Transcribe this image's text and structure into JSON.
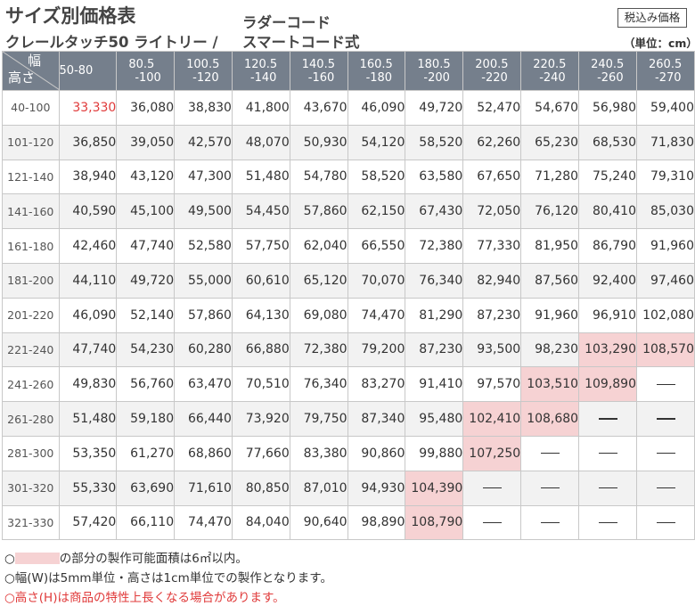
{
  "header": {
    "title": "サイズ別価格表",
    "product1": "クレールタッチ50 ライトリー /",
    "product2_line1": "ラダーコード",
    "product2_line2": "スマートコード式",
    "tax_badge": "税込み価格",
    "unit": "（単位：cm）"
  },
  "table": {
    "corner_width_label": "幅",
    "corner_height_label": "高さ",
    "width_columns": [
      {
        "l1": "50-80",
        "l2": ""
      },
      {
        "l1": "80.5",
        "l2": "-100"
      },
      {
        "l1": "100.5",
        "l2": "-120"
      },
      {
        "l1": "120.5",
        "l2": "-140"
      },
      {
        "l1": "140.5",
        "l2": "-160"
      },
      {
        "l1": "160.5",
        "l2": "-180"
      },
      {
        "l1": "180.5",
        "l2": "-200"
      },
      {
        "l1": "200.5",
        "l2": "-220"
      },
      {
        "l1": "220.5",
        "l2": "-240"
      },
      {
        "l1": "240.5",
        "l2": "-260"
      },
      {
        "l1": "260.5",
        "l2": "-270"
      }
    ],
    "rows": [
      {
        "height": "40-100",
        "prices": [
          "33,330",
          "36,080",
          "38,830",
          "41,800",
          "43,670",
          "46,090",
          "49,720",
          "52,470",
          "54,670",
          "56,980",
          "59,400"
        ]
      },
      {
        "height": "101-120",
        "prices": [
          "36,850",
          "39,050",
          "42,570",
          "48,070",
          "50,930",
          "54,120",
          "58,520",
          "62,260",
          "65,230",
          "68,530",
          "71,830"
        ]
      },
      {
        "height": "121-140",
        "prices": [
          "38,940",
          "43,120",
          "47,300",
          "51,480",
          "54,780",
          "58,520",
          "63,580",
          "67,650",
          "71,280",
          "75,240",
          "79,310"
        ]
      },
      {
        "height": "141-160",
        "prices": [
          "40,590",
          "45,100",
          "49,500",
          "54,450",
          "57,860",
          "62,150",
          "67,430",
          "72,050",
          "76,120",
          "80,410",
          "85,030"
        ]
      },
      {
        "height": "161-180",
        "prices": [
          "42,460",
          "47,740",
          "52,580",
          "57,750",
          "62,040",
          "66,550",
          "72,380",
          "77,330",
          "81,950",
          "86,790",
          "91,960"
        ]
      },
      {
        "height": "181-200",
        "prices": [
          "44,110",
          "49,720",
          "55,000",
          "60,610",
          "65,120",
          "70,070",
          "76,340",
          "82,940",
          "87,560",
          "92,400",
          "97,460"
        ]
      },
      {
        "height": "201-220",
        "prices": [
          "46,090",
          "52,140",
          "57,860",
          "64,130",
          "69,080",
          "74,470",
          "81,290",
          "87,230",
          "91,960",
          "96,910",
          "102,080"
        ]
      },
      {
        "height": "221-240",
        "prices": [
          "47,740",
          "54,230",
          "60,280",
          "66,880",
          "72,380",
          "79,200",
          "87,230",
          "93,500",
          "98,230",
          "103,290",
          "108,570"
        ]
      },
      {
        "height": "241-260",
        "prices": [
          "49,830",
          "56,760",
          "63,470",
          "70,510",
          "76,340",
          "83,270",
          "91,410",
          "97,570",
          "103,510",
          "109,890",
          "—"
        ]
      },
      {
        "height": "261-280",
        "prices": [
          "51,480",
          "59,180",
          "66,440",
          "73,920",
          "79,750",
          "87,340",
          "95,480",
          "102,410",
          "108,680",
          "—",
          "—"
        ]
      },
      {
        "height": "281-300",
        "prices": [
          "53,350",
          "61,270",
          "68,860",
          "77,660",
          "83,380",
          "90,860",
          "99,880",
          "107,250",
          "—",
          "—",
          "—"
        ]
      },
      {
        "height": "301-320",
        "prices": [
          "55,330",
          "63,690",
          "71,610",
          "80,850",
          "87,010",
          "94,930",
          "104,390",
          "—",
          "—",
          "—",
          "—"
        ]
      },
      {
        "height": "321-330",
        "prices": [
          "57,420",
          "66,110",
          "74,470",
          "84,040",
          "90,640",
          "98,890",
          "108,790",
          "—",
          "—",
          "—",
          "—"
        ]
      }
    ],
    "highlighted_cells": [
      [
        7,
        9
      ],
      [
        7,
        10
      ],
      [
        8,
        8
      ],
      [
        8,
        9
      ],
      [
        9,
        7
      ],
      [
        9,
        8
      ],
      [
        10,
        7
      ],
      [
        11,
        6
      ],
      [
        12,
        6
      ]
    ],
    "colors": {
      "header_bg": "#757f8c",
      "highlight": "#f6d2d3",
      "accent_red": "#e03a3a"
    }
  },
  "notes": {
    "n1_prefix": "○",
    "n1_suffix": "の部分の製作可能面積は6㎡以内。",
    "n2": "○幅(W)は5mm単位・高さは1cm単位での製作となります。",
    "n3": "○高さ(H)は商品の特性上長くなる場合があります。"
  }
}
